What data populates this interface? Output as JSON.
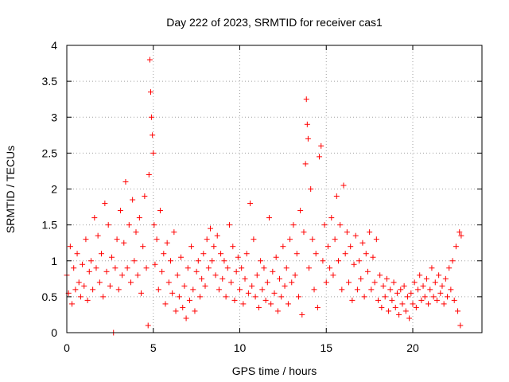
{
  "chart_data": {
    "type": "scatter",
    "title": "Day 222 of 2023, SRMTID for receiver cas1",
    "xlabel": "GPS time / hours",
    "ylabel": "SRMTID / TECUs",
    "xlim": [
      0,
      24
    ],
    "ylim": [
      0,
      4
    ],
    "xticks": [
      0,
      5,
      10,
      15,
      20
    ],
    "yticks": [
      0,
      0.5,
      1,
      1.5,
      2,
      2.5,
      3,
      3.5,
      4
    ],
    "xtick_labels": [
      "0",
      "5",
      "10",
      "15",
      "20"
    ],
    "ytick_labels": [
      "0",
      "0.5",
      "1",
      "1.5",
      "2",
      "2.5",
      "3",
      "3.5",
      "4"
    ],
    "grid": true,
    "marker": "plus",
    "series": [
      {
        "name": "SRMTID",
        "color": "#ff0000",
        "points": [
          [
            0.0,
            0.8
          ],
          [
            0.1,
            0.55
          ],
          [
            0.2,
            1.2
          ],
          [
            0.3,
            0.4
          ],
          [
            0.4,
            0.9
          ],
          [
            0.5,
            0.6
          ],
          [
            0.6,
            1.1
          ],
          [
            0.7,
            0.7
          ],
          [
            0.8,
            0.5
          ],
          [
            0.9,
            0.95
          ],
          [
            1.0,
            0.65
          ],
          [
            1.1,
            1.3
          ],
          [
            1.2,
            0.45
          ],
          [
            1.3,
            0.85
          ],
          [
            1.4,
            1.0
          ],
          [
            1.5,
            0.6
          ],
          [
            1.6,
            1.6
          ],
          [
            1.7,
            0.9
          ],
          [
            1.8,
            1.35
          ],
          [
            1.9,
            0.7
          ],
          [
            2.0,
            1.1
          ],
          [
            2.1,
            0.5
          ],
          [
            2.2,
            1.8
          ],
          [
            2.3,
            0.85
          ],
          [
            2.4,
            1.5
          ],
          [
            2.5,
            0.65
          ],
          [
            2.6,
            1.05
          ],
          [
            2.7,
            0.0
          ],
          [
            2.8,
            0.9
          ],
          [
            2.9,
            1.3
          ],
          [
            3.0,
            0.6
          ],
          [
            3.1,
            1.7
          ],
          [
            3.2,
            0.8
          ],
          [
            3.3,
            1.25
          ],
          [
            3.4,
            2.1
          ],
          [
            3.5,
            0.9
          ],
          [
            3.6,
            1.5
          ],
          [
            3.7,
            0.7
          ],
          [
            3.8,
            1.85
          ],
          [
            3.9,
            1.0
          ],
          [
            4.0,
            1.4
          ],
          [
            4.1,
            0.8
          ],
          [
            4.2,
            1.6
          ],
          [
            4.3,
            0.55
          ],
          [
            4.4,
            1.2
          ],
          [
            4.5,
            1.9
          ],
          [
            4.6,
            0.9
          ],
          [
            4.7,
            0.1
          ],
          [
            4.75,
            2.2
          ],
          [
            4.8,
            3.8
          ],
          [
            4.85,
            3.35
          ],
          [
            4.9,
            3.0
          ],
          [
            4.95,
            2.75
          ],
          [
            5.0,
            2.5
          ],
          [
            5.05,
            1.5
          ],
          [
            5.1,
            0.95
          ],
          [
            5.2,
            1.3
          ],
          [
            5.3,
            0.6
          ],
          [
            5.4,
            1.7
          ],
          [
            5.5,
            0.85
          ],
          [
            5.6,
            1.1
          ],
          [
            5.7,
            0.4
          ],
          [
            5.8,
            1.25
          ],
          [
            5.9,
            0.7
          ],
          [
            6.0,
            1.0
          ],
          [
            6.1,
            0.55
          ],
          [
            6.2,
            1.4
          ],
          [
            6.3,
            0.3
          ],
          [
            6.4,
            0.8
          ],
          [
            6.5,
            0.5
          ],
          [
            6.6,
            1.05
          ],
          [
            6.7,
            0.35
          ],
          [
            6.8,
            0.65
          ],
          [
            6.9,
            0.2
          ],
          [
            7.0,
            0.9
          ],
          [
            7.1,
            0.45
          ],
          [
            7.2,
            1.2
          ],
          [
            7.3,
            0.6
          ],
          [
            7.4,
            0.3
          ],
          [
            7.5,
            0.85
          ],
          [
            7.6,
            1.0
          ],
          [
            7.7,
            0.5
          ],
          [
            7.8,
            0.75
          ],
          [
            7.9,
            1.1
          ],
          [
            8.0,
            0.65
          ],
          [
            8.1,
            1.3
          ],
          [
            8.2,
            0.9
          ],
          [
            8.3,
            1.45
          ],
          [
            8.4,
            1.0
          ],
          [
            8.5,
            1.2
          ],
          [
            8.6,
            0.8
          ],
          [
            8.7,
            1.35
          ],
          [
            8.8,
            0.6
          ],
          [
            8.9,
            1.1
          ],
          [
            9.0,
            0.75
          ],
          [
            9.1,
            1.0
          ],
          [
            9.2,
            0.5
          ],
          [
            9.3,
            0.9
          ],
          [
            9.4,
            1.5
          ],
          [
            9.5,
            0.7
          ],
          [
            9.6,
            1.2
          ],
          [
            9.7,
            0.45
          ],
          [
            9.8,
            0.85
          ],
          [
            9.9,
            1.05
          ],
          [
            10.0,
            0.6
          ],
          [
            10.1,
            0.9
          ],
          [
            10.2,
            0.4
          ],
          [
            10.3,
            0.75
          ],
          [
            10.4,
            1.1
          ],
          [
            10.5,
            0.55
          ],
          [
            10.6,
            1.8
          ],
          [
            10.7,
            0.65
          ],
          [
            10.8,
            1.3
          ],
          [
            10.9,
            0.5
          ],
          [
            11.0,
            0.8
          ],
          [
            11.1,
            0.35
          ],
          [
            11.2,
            1.0
          ],
          [
            11.3,
            0.6
          ],
          [
            11.4,
            0.9
          ],
          [
            11.5,
            0.45
          ],
          [
            11.6,
            0.7
          ],
          [
            11.7,
            1.6
          ],
          [
            11.8,
            0.4
          ],
          [
            11.9,
            0.85
          ],
          [
            12.0,
            0.55
          ],
          [
            12.1,
            1.05
          ],
          [
            12.2,
            0.3
          ],
          [
            12.3,
            0.75
          ],
          [
            12.4,
            0.5
          ],
          [
            12.5,
            1.2
          ],
          [
            12.6,
            0.65
          ],
          [
            12.7,
            0.9
          ],
          [
            12.8,
            0.4
          ],
          [
            12.9,
            1.3
          ],
          [
            13.0,
            0.7
          ],
          [
            13.1,
            1.5
          ],
          [
            13.2,
            0.8
          ],
          [
            13.3,
            1.1
          ],
          [
            13.4,
            0.5
          ],
          [
            13.5,
            1.7
          ],
          [
            13.6,
            0.25
          ],
          [
            13.7,
            1.4
          ],
          [
            13.8,
            2.35
          ],
          [
            13.85,
            3.25
          ],
          [
            13.9,
            2.9
          ],
          [
            13.95,
            2.7
          ],
          [
            14.0,
            0.9
          ],
          [
            14.1,
            2.0
          ],
          [
            14.2,
            1.3
          ],
          [
            14.3,
            0.6
          ],
          [
            14.4,
            1.1
          ],
          [
            14.5,
            0.35
          ],
          [
            14.6,
            2.45
          ],
          [
            14.7,
            2.6
          ],
          [
            14.8,
            1.0
          ],
          [
            14.9,
            1.5
          ],
          [
            15.0,
            0.7
          ],
          [
            15.1,
            1.2
          ],
          [
            15.2,
            0.9
          ],
          [
            15.3,
            1.6
          ],
          [
            15.4,
            0.8
          ],
          [
            15.5,
            1.3
          ],
          [
            15.6,
            1.9
          ],
          [
            15.7,
            1.0
          ],
          [
            15.8,
            1.5
          ],
          [
            15.9,
            0.6
          ],
          [
            16.0,
            2.05
          ],
          [
            16.1,
            1.1
          ],
          [
            16.2,
            1.4
          ],
          [
            16.3,
            0.7
          ],
          [
            16.4,
            1.2
          ],
          [
            16.5,
            0.45
          ],
          [
            16.6,
            0.95
          ],
          [
            16.7,
            1.35
          ],
          [
            16.8,
            0.6
          ],
          [
            16.9,
            1.0
          ],
          [
            17.0,
            0.75
          ],
          [
            17.1,
            1.25
          ],
          [
            17.2,
            0.5
          ],
          [
            17.3,
            1.1
          ],
          [
            17.4,
            0.85
          ],
          [
            17.5,
            1.4
          ],
          [
            17.6,
            0.6
          ],
          [
            17.7,
            1.05
          ],
          [
            17.8,
            0.7
          ],
          [
            17.9,
            1.3
          ],
          [
            18.0,
            0.45
          ],
          [
            18.1,
            0.8
          ],
          [
            18.2,
            0.35
          ],
          [
            18.3,
            0.65
          ],
          [
            18.4,
            0.5
          ],
          [
            18.5,
            0.75
          ],
          [
            18.6,
            0.3
          ],
          [
            18.7,
            0.6
          ],
          [
            18.8,
            0.45
          ],
          [
            18.9,
            0.7
          ],
          [
            19.0,
            0.35
          ],
          [
            19.1,
            0.55
          ],
          [
            19.2,
            0.25
          ],
          [
            19.3,
            0.6
          ],
          [
            19.4,
            0.4
          ],
          [
            19.5,
            0.65
          ],
          [
            19.6,
            0.3
          ],
          [
            19.7,
            0.5
          ],
          [
            19.8,
            0.2
          ],
          [
            19.9,
            0.55
          ],
          [
            20.0,
            0.4
          ],
          [
            20.1,
            0.7
          ],
          [
            20.2,
            0.35
          ],
          [
            20.3,
            0.6
          ],
          [
            20.4,
            0.8
          ],
          [
            20.5,
            0.45
          ],
          [
            20.6,
            0.65
          ],
          [
            20.7,
            0.5
          ],
          [
            20.8,
            0.75
          ],
          [
            20.9,
            0.4
          ],
          [
            21.0,
            0.6
          ],
          [
            21.1,
            0.9
          ],
          [
            21.2,
            0.5
          ],
          [
            21.3,
            0.7
          ],
          [
            21.4,
            0.45
          ],
          [
            21.5,
            0.8
          ],
          [
            21.6,
            0.55
          ],
          [
            21.7,
            0.65
          ],
          [
            21.8,
            0.4
          ],
          [
            21.9,
            0.75
          ],
          [
            22.0,
            0.5
          ],
          [
            22.1,
            0.9
          ],
          [
            22.2,
            0.6
          ],
          [
            22.3,
            1.0
          ],
          [
            22.4,
            0.45
          ],
          [
            22.5,
            1.2
          ],
          [
            22.6,
            0.3
          ],
          [
            22.7,
            1.4
          ],
          [
            22.75,
            0.1
          ],
          [
            22.8,
            1.35
          ]
        ]
      }
    ]
  }
}
